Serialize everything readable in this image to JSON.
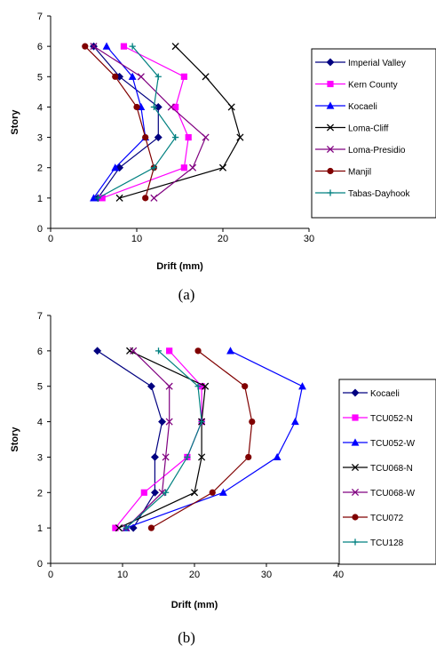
{
  "chart_data": [
    {
      "type": "line",
      "caption": "(a)",
      "xlabel": "Drift (mm)",
      "ylabel": "Story",
      "xlim": [
        0,
        30
      ],
      "ylim": [
        0,
        7
      ],
      "xticks": [
        0,
        10,
        20,
        30
      ],
      "yticks": [
        0,
        1,
        2,
        3,
        4,
        5,
        6,
        7
      ],
      "grid": false,
      "legend_position": "right",
      "series": [
        {
          "name": "Imperial Valley",
          "color": "#000080",
          "marker": "diamond",
          "points": [
            [
              5.5,
              1
            ],
            [
              8.0,
              2
            ],
            [
              12.5,
              3
            ],
            [
              12.5,
              4
            ],
            [
              8.0,
              5
            ],
            [
              5.0,
              6
            ]
          ]
        },
        {
          "name": "Kern County",
          "color": "#FF00FF",
          "marker": "square",
          "points": [
            [
              6.0,
              1
            ],
            [
              15.5,
              2
            ],
            [
              16.0,
              3
            ],
            [
              14.5,
              4
            ],
            [
              15.5,
              5
            ],
            [
              8.5,
              6
            ]
          ]
        },
        {
          "name": "Kocaeli",
          "color": "#0000FF",
          "marker": "triangle",
          "points": [
            [
              5.0,
              1
            ],
            [
              7.5,
              2
            ],
            [
              11.0,
              3
            ],
            [
              10.5,
              4
            ],
            [
              9.5,
              5
            ],
            [
              6.5,
              6
            ]
          ]
        },
        {
          "name": "Loma-Cliff",
          "color": "#000000",
          "marker": "x",
          "points": [
            [
              8.0,
              1
            ],
            [
              20.0,
              2
            ],
            [
              22.0,
              3
            ],
            [
              21.0,
              4
            ],
            [
              18.0,
              5
            ],
            [
              14.5,
              6
            ]
          ]
        },
        {
          "name": "Loma-Presidio",
          "color": "#800080",
          "marker": "x",
          "points": [
            [
              12.0,
              1
            ],
            [
              16.5,
              2
            ],
            [
              18.0,
              3
            ],
            [
              14.0,
              4
            ],
            [
              10.5,
              5
            ],
            [
              5.0,
              6
            ]
          ]
        },
        {
          "name": "Manjil",
          "color": "#800000",
          "marker": "circle",
          "points": [
            [
              11.0,
              1
            ],
            [
              12.0,
              2
            ],
            [
              11.0,
              3
            ],
            [
              10.0,
              4
            ],
            [
              7.5,
              5
            ],
            [
              4.0,
              6
            ]
          ]
        },
        {
          "name": "Tabas-Dayhook",
          "color": "#008080",
          "marker": "plus",
          "points": [
            [
              5.5,
              1
            ],
            [
              12.0,
              2
            ],
            [
              14.5,
              3
            ],
            [
              12.0,
              4
            ],
            [
              12.5,
              5
            ],
            [
              9.5,
              6
            ]
          ]
        }
      ]
    },
    {
      "type": "line",
      "caption": "(b)",
      "xlabel": "Drift (mm)",
      "ylabel": "Story",
      "xlim": [
        0,
        40
      ],
      "ylim": [
        0,
        7
      ],
      "xticks": [
        0,
        10,
        20,
        30,
        40
      ],
      "yticks": [
        0,
        1,
        2,
        3,
        4,
        5,
        6,
        7
      ],
      "grid": false,
      "legend_position": "right",
      "series": [
        {
          "name": "Kocaeli",
          "color": "#000080",
          "marker": "diamond",
          "points": [
            [
              11.5,
              1
            ],
            [
              14.5,
              2
            ],
            [
              14.5,
              3
            ],
            [
              15.5,
              4
            ],
            [
              14.0,
              5
            ],
            [
              6.5,
              6
            ]
          ]
        },
        {
          "name": "TCU052-N",
          "color": "#FF00FF",
          "marker": "square",
          "points": [
            [
              9.0,
              1
            ],
            [
              13.0,
              2
            ],
            [
              19.0,
              3
            ],
            [
              21.0,
              4
            ],
            [
              21.0,
              5
            ],
            [
              16.5,
              6
            ]
          ]
        },
        {
          "name": "TCU052-W",
          "color": "#0000FF",
          "marker": "triangle",
          "points": [
            [
              10.5,
              1
            ],
            [
              24.0,
              2
            ],
            [
              31.5,
              3
            ],
            [
              34.0,
              4
            ],
            [
              35.0,
              5
            ],
            [
              25.0,
              6
            ]
          ]
        },
        {
          "name": "TCU068-N",
          "color": "#000000",
          "marker": "x",
          "points": [
            [
              9.5,
              1
            ],
            [
              20.0,
              2
            ],
            [
              21.0,
              3
            ],
            [
              21.0,
              4
            ],
            [
              21.5,
              5
            ],
            [
              11.0,
              6
            ]
          ]
        },
        {
          "name": "TCU068-W",
          "color": "#800080",
          "marker": "x",
          "points": [
            [
              10.5,
              1
            ],
            [
              15.5,
              2
            ],
            [
              16.0,
              3
            ],
            [
              16.5,
              4
            ],
            [
              16.5,
              5
            ],
            [
              11.5,
              6
            ]
          ]
        },
        {
          "name": "TCU072",
          "color": "#800000",
          "marker": "circle",
          "points": [
            [
              14.0,
              1
            ],
            [
              22.5,
              2
            ],
            [
              27.5,
              3
            ],
            [
              28.0,
              4
            ],
            [
              27.0,
              5
            ],
            [
              20.5,
              6
            ]
          ]
        },
        {
          "name": "TCU128",
          "color": "#008080",
          "marker": "plus",
          "points": [
            [
              10.5,
              1
            ],
            [
              16.0,
              2
            ],
            [
              19.0,
              3
            ],
            [
              21.0,
              4
            ],
            [
              20.5,
              5
            ],
            [
              15.0,
              6
            ]
          ]
        }
      ]
    }
  ]
}
